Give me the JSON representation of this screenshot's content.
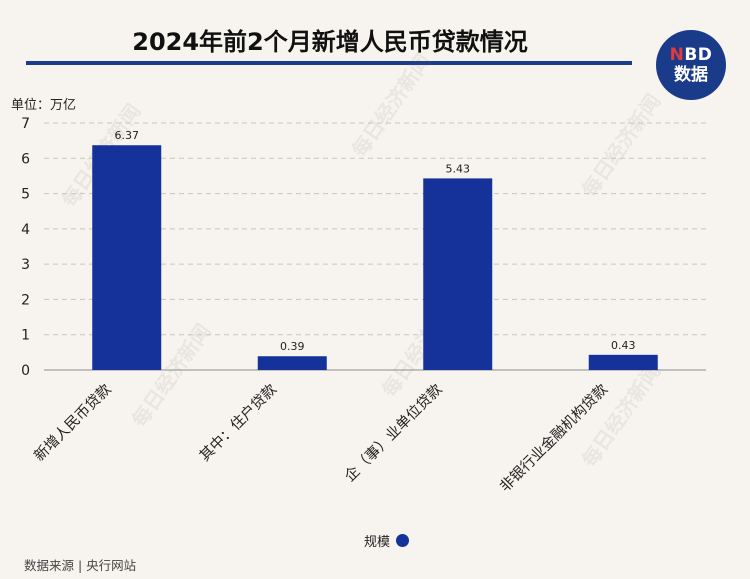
{
  "header": {
    "title": "2024年前2个月新增人民币贷款情况"
  },
  "logo": {
    "line1_accent": "N",
    "line1_rest": "BD",
    "line2": "数据"
  },
  "watermark": "每日经济新闻",
  "unit_label": "单位：万亿",
  "source": "数据来源 | 央行网站",
  "legend": {
    "label": "规模"
  },
  "colors": {
    "bar": "#14329a",
    "title_rule": "#1a3c8c",
    "background": "#f7f4ef"
  },
  "chart_data": {
    "type": "bar",
    "categories": [
      "新增人民币贷款",
      "其中：住户贷款",
      "企（事）业单位贷款",
      "非银行业金融机构贷款"
    ],
    "series": [
      {
        "name": "规模",
        "values": [
          6.37,
          0.39,
          5.43,
          0.43
        ]
      }
    ],
    "data_labels": [
      "6.37",
      "0.39",
      "5.43",
      "0.43"
    ],
    "yticks": [
      0,
      1,
      2,
      3,
      4,
      5,
      6,
      7
    ],
    "ylim": [
      0,
      7
    ],
    "grid": "horizontal dashed",
    "legend_position": "bottom"
  }
}
